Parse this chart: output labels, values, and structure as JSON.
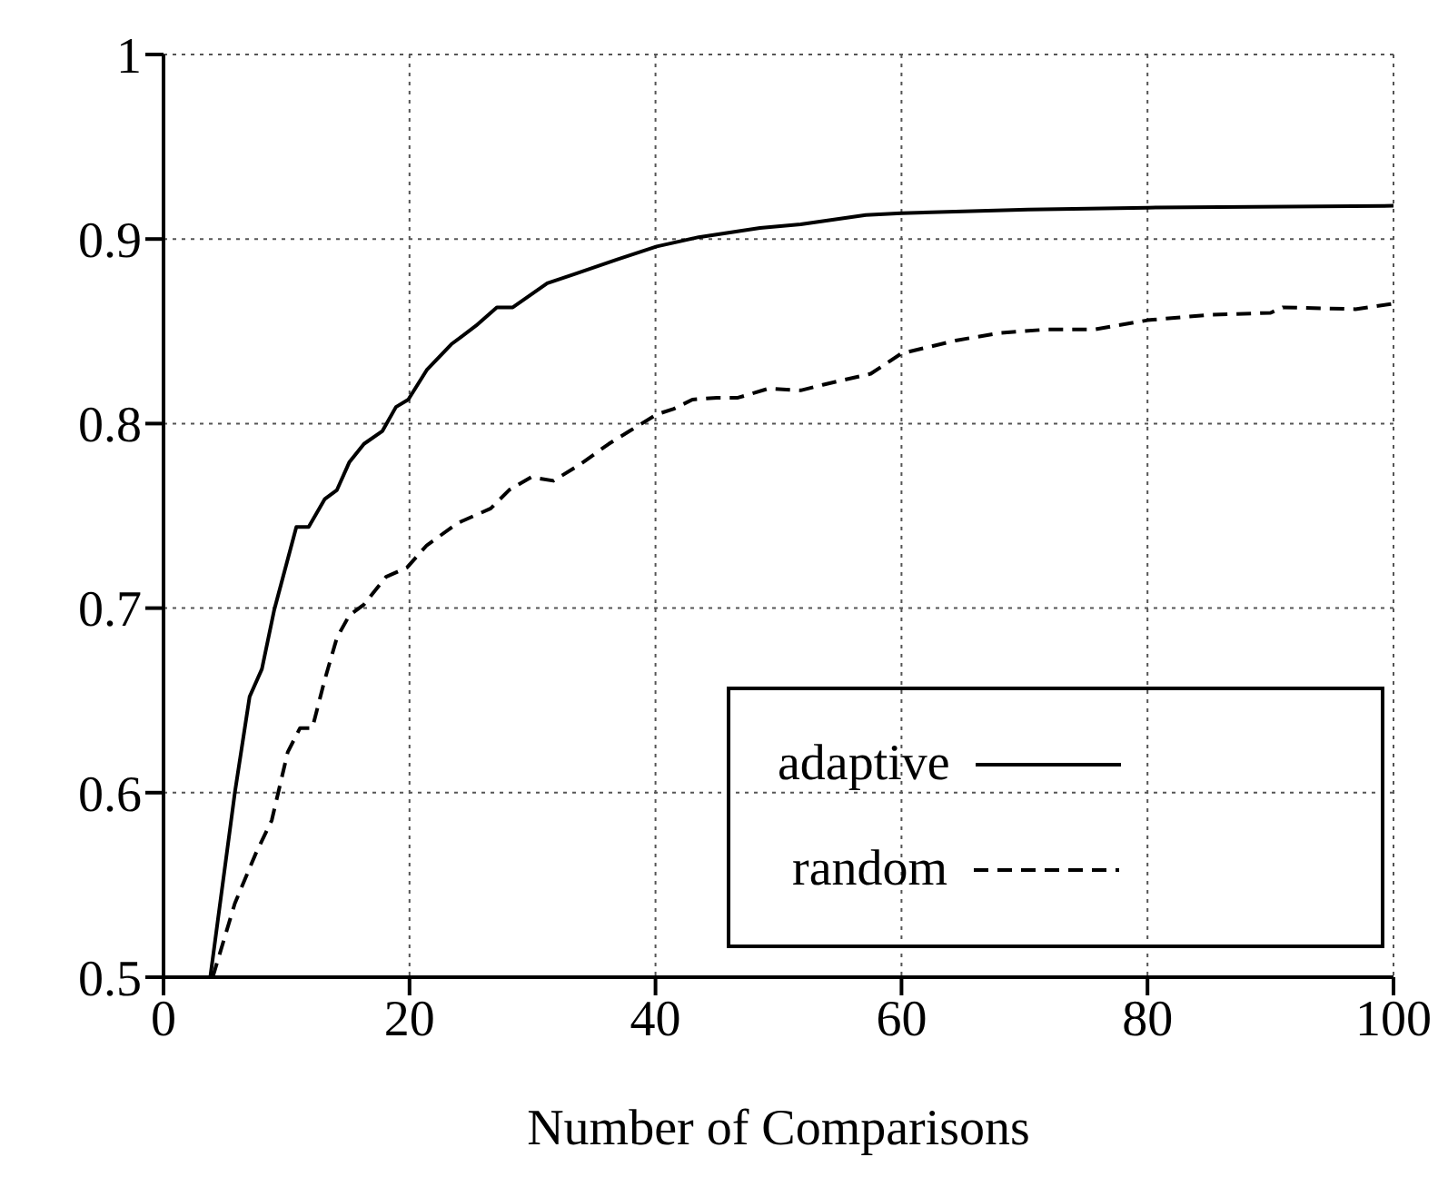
{
  "chart_data": {
    "type": "line",
    "xlabel": "Number of Comparisons",
    "xlim": [
      0,
      100
    ],
    "xticks": [
      0,
      20,
      40,
      60,
      80,
      100
    ],
    "ylim": [
      0.5,
      1
    ],
    "yticks": [
      0.5,
      0.6,
      0.7,
      0.8,
      0.9,
      1
    ],
    "grid": true,
    "legend": "bottom right",
    "marker": "none",
    "series": [
      {
        "name": "adaptive",
        "color": "#000000",
        "line_style": "solid",
        "x": [
          3.8,
          5.8,
          7.0,
          8.0,
          9.0,
          10.8,
          11.8,
          13.1,
          14.1,
          15.1,
          16.3,
          17.8,
          18.9,
          19.9,
          21.4,
          23.4,
          25.4,
          27.1,
          28.4,
          31.2,
          33.4,
          36.9,
          40.1,
          43.5,
          48.5,
          51.8,
          57.1,
          60,
          70.3,
          80,
          100
        ],
        "values": [
          0.5,
          0.6,
          0.652,
          0.667,
          0.699,
          0.744,
          0.744,
          0.759,
          0.764,
          0.779,
          0.789,
          0.796,
          0.809,
          0.813,
          0.829,
          0.843,
          0.853,
          0.863,
          0.863,
          0.876,
          0.881,
          0.889,
          0.896,
          0.901,
          0.906,
          0.908,
          0.913,
          0.914,
          0.916,
          0.917,
          0.918
        ]
      },
      {
        "name": "random",
        "color": "#000000",
        "line_style": "dashed",
        "x": [
          4.0,
          5.8,
          7.5,
          8.8,
          10.1,
          11.1,
          12.1,
          13.1,
          14.1,
          15.1,
          16.3,
          18.1,
          19.8,
          21.4,
          23.9,
          26.6,
          28.1,
          29.9,
          31.7,
          33.9,
          36.2,
          37.9,
          40.1,
          41.5,
          43.0,
          45.0,
          46.7,
          49.2,
          51.8,
          53.6,
          57.5,
          60,
          64.4,
          67.9,
          71.8,
          75.7,
          80,
          85.1,
          90.0,
          91.0,
          96.9,
          100
        ],
        "values": [
          0.5,
          0.54,
          0.567,
          0.585,
          0.622,
          0.635,
          0.635,
          0.661,
          0.684,
          0.696,
          0.702,
          0.717,
          0.722,
          0.734,
          0.746,
          0.754,
          0.764,
          0.771,
          0.769,
          0.778,
          0.789,
          0.796,
          0.805,
          0.808,
          0.813,
          0.814,
          0.814,
          0.819,
          0.818,
          0.821,
          0.827,
          0.838,
          0.845,
          0.849,
          0.851,
          0.851,
          0.856,
          0.859,
          0.86,
          0.863,
          0.862,
          0.865
        ]
      }
    ]
  }
}
